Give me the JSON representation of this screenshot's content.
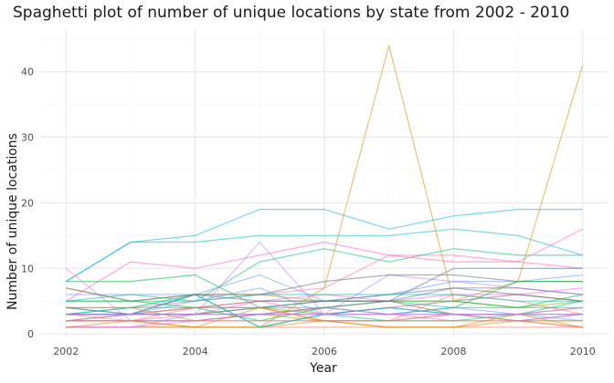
{
  "chart_data": {
    "type": "line",
    "title": "Spaghetti plot of number of unique locations by state from 2002 - 2010",
    "xlabel": "Year",
    "ylabel": "Number of unique locations",
    "x_ticks": [
      2002,
      2004,
      2006,
      2008,
      2010
    ],
    "y_ticks": [
      0,
      10,
      20,
      30,
      40
    ],
    "xlim": [
      2001.6,
      2010.4
    ],
    "ylim": [
      -0.4,
      46.5
    ],
    "grid": true,
    "legend": "none",
    "x": [
      2002,
      2003,
      2004,
      2005,
      2006,
      2007,
      2008,
      2009,
      2010
    ],
    "series": [
      {
        "color": "#F8766D",
        "values": [
          1,
          1,
          1,
          1,
          1,
          1,
          1,
          1,
          1
        ]
      },
      {
        "color": "#E58700",
        "values": [
          2,
          2,
          2,
          3,
          2,
          2,
          2,
          2,
          2
        ]
      },
      {
        "color": "#C99800",
        "values": [
          1,
          1,
          1,
          1,
          2,
          1,
          1,
          2,
          1
        ]
      },
      {
        "color": "#A3A500",
        "values": [
          7,
          5,
          6,
          6,
          5,
          5,
          5,
          4,
          5
        ]
      },
      {
        "color": "#6BB100",
        "values": [
          3,
          3,
          3,
          4,
          3,
          4,
          3,
          3,
          4
        ]
      },
      {
        "color": "#00BA38",
        "values": [
          8,
          8,
          9,
          4,
          5,
          5,
          5,
          4,
          6
        ]
      },
      {
        "color": "#00BF7D",
        "values": [
          5,
          5,
          5,
          11,
          13,
          11,
          13,
          12,
          12
        ]
      },
      {
        "color": "#00C0AF",
        "values": [
          3,
          4,
          4,
          4,
          4,
          5,
          4,
          4,
          4
        ]
      },
      {
        "color": "#00BCD8",
        "values": [
          8,
          14,
          14,
          15,
          15,
          15,
          16,
          15,
          12
        ]
      },
      {
        "color": "#00B0F6",
        "values": [
          8,
          14,
          15,
          19,
          19,
          16,
          18,
          19,
          19
        ]
      },
      {
        "color": "#619CFF",
        "values": [
          6,
          6,
          6,
          9,
          5,
          6,
          8,
          8,
          9
        ]
      },
      {
        "color": "#B983FF",
        "values": [
          1,
          1,
          3,
          14,
          3,
          9,
          8,
          7,
          6
        ]
      },
      {
        "color": "#E76BF3",
        "values": [
          10,
          2,
          3,
          5,
          6,
          5,
          6,
          6,
          7
        ]
      },
      {
        "color": "#FD61D1",
        "values": [
          5,
          11,
          10,
          12,
          14,
          12,
          12,
          11,
          16
        ]
      },
      {
        "color": "#FF67A4",
        "values": [
          4,
          4,
          5,
          6,
          7,
          12,
          11,
          11,
          10
        ]
      },
      {
        "color": "#8A6E2A",
        "values": [
          3,
          3,
          4,
          5,
          5,
          5,
          3,
          3,
          3
        ]
      },
      {
        "color": "#6E6E6E",
        "values": [
          7,
          5,
          6,
          6,
          8,
          9,
          9,
          8,
          8
        ]
      },
      {
        "color": "#5B6FA0",
        "values": [
          2,
          3,
          3,
          4,
          5,
          5,
          10,
          10,
          10
        ]
      },
      {
        "color": "#9E5A9E",
        "values": [
          2,
          2,
          2,
          3,
          3,
          4,
          5,
          6,
          5
        ]
      },
      {
        "color": "#C99800",
        "values": [
          2,
          2,
          1,
          1,
          7,
          44,
          5,
          8,
          41
        ]
      },
      {
        "color": "#00BA38",
        "values": [
          5,
          5,
          4,
          2,
          4,
          3,
          4,
          8,
          8
        ]
      },
      {
        "color": "#00B0F6",
        "values": [
          4,
          3,
          6,
          1,
          3,
          4,
          3,
          2,
          3
        ]
      },
      {
        "color": "#F8766D",
        "values": [
          3,
          2,
          4,
          4,
          2,
          2,
          6,
          5,
          3
        ]
      },
      {
        "color": "#619CFF",
        "values": [
          3,
          3,
          5,
          7,
          3,
          3,
          4,
          3,
          2
        ]
      },
      {
        "color": "#00BF7D",
        "values": [
          3,
          4,
          6,
          1,
          3,
          2,
          2,
          3,
          5
        ]
      },
      {
        "color": "#E76BF3",
        "values": [
          1,
          1,
          2,
          3,
          4,
          3,
          3,
          3,
          4
        ]
      },
      {
        "color": "#A3A500",
        "values": [
          4,
          4,
          2,
          2,
          2,
          2,
          3,
          2,
          2
        ]
      },
      {
        "color": "#FF67A4",
        "values": [
          2,
          3,
          4,
          5,
          3,
          3,
          2,
          2,
          1
        ]
      },
      {
        "color": "#6E6E6E",
        "values": [
          4,
          3,
          3,
          3,
          4,
          5,
          7,
          6,
          5
        ]
      },
      {
        "color": "#5B6FA0",
        "values": [
          3,
          3,
          6,
          5,
          5,
          6,
          7,
          7,
          6
        ]
      },
      {
        "color": "#E58700",
        "values": [
          1,
          2,
          1,
          4,
          2,
          1,
          1,
          3,
          1
        ]
      },
      {
        "color": "#00C0AF",
        "values": [
          5,
          6,
          5,
          6,
          6,
          6,
          6,
          5,
          5
        ]
      },
      {
        "color": "#FD61D1",
        "values": [
          2,
          2,
          2,
          2,
          2,
          2,
          3,
          2,
          3
        ]
      },
      {
        "color": "#B983FF",
        "values": [
          3,
          3,
          3,
          3,
          3,
          3,
          3,
          3,
          3
        ]
      }
    ]
  }
}
